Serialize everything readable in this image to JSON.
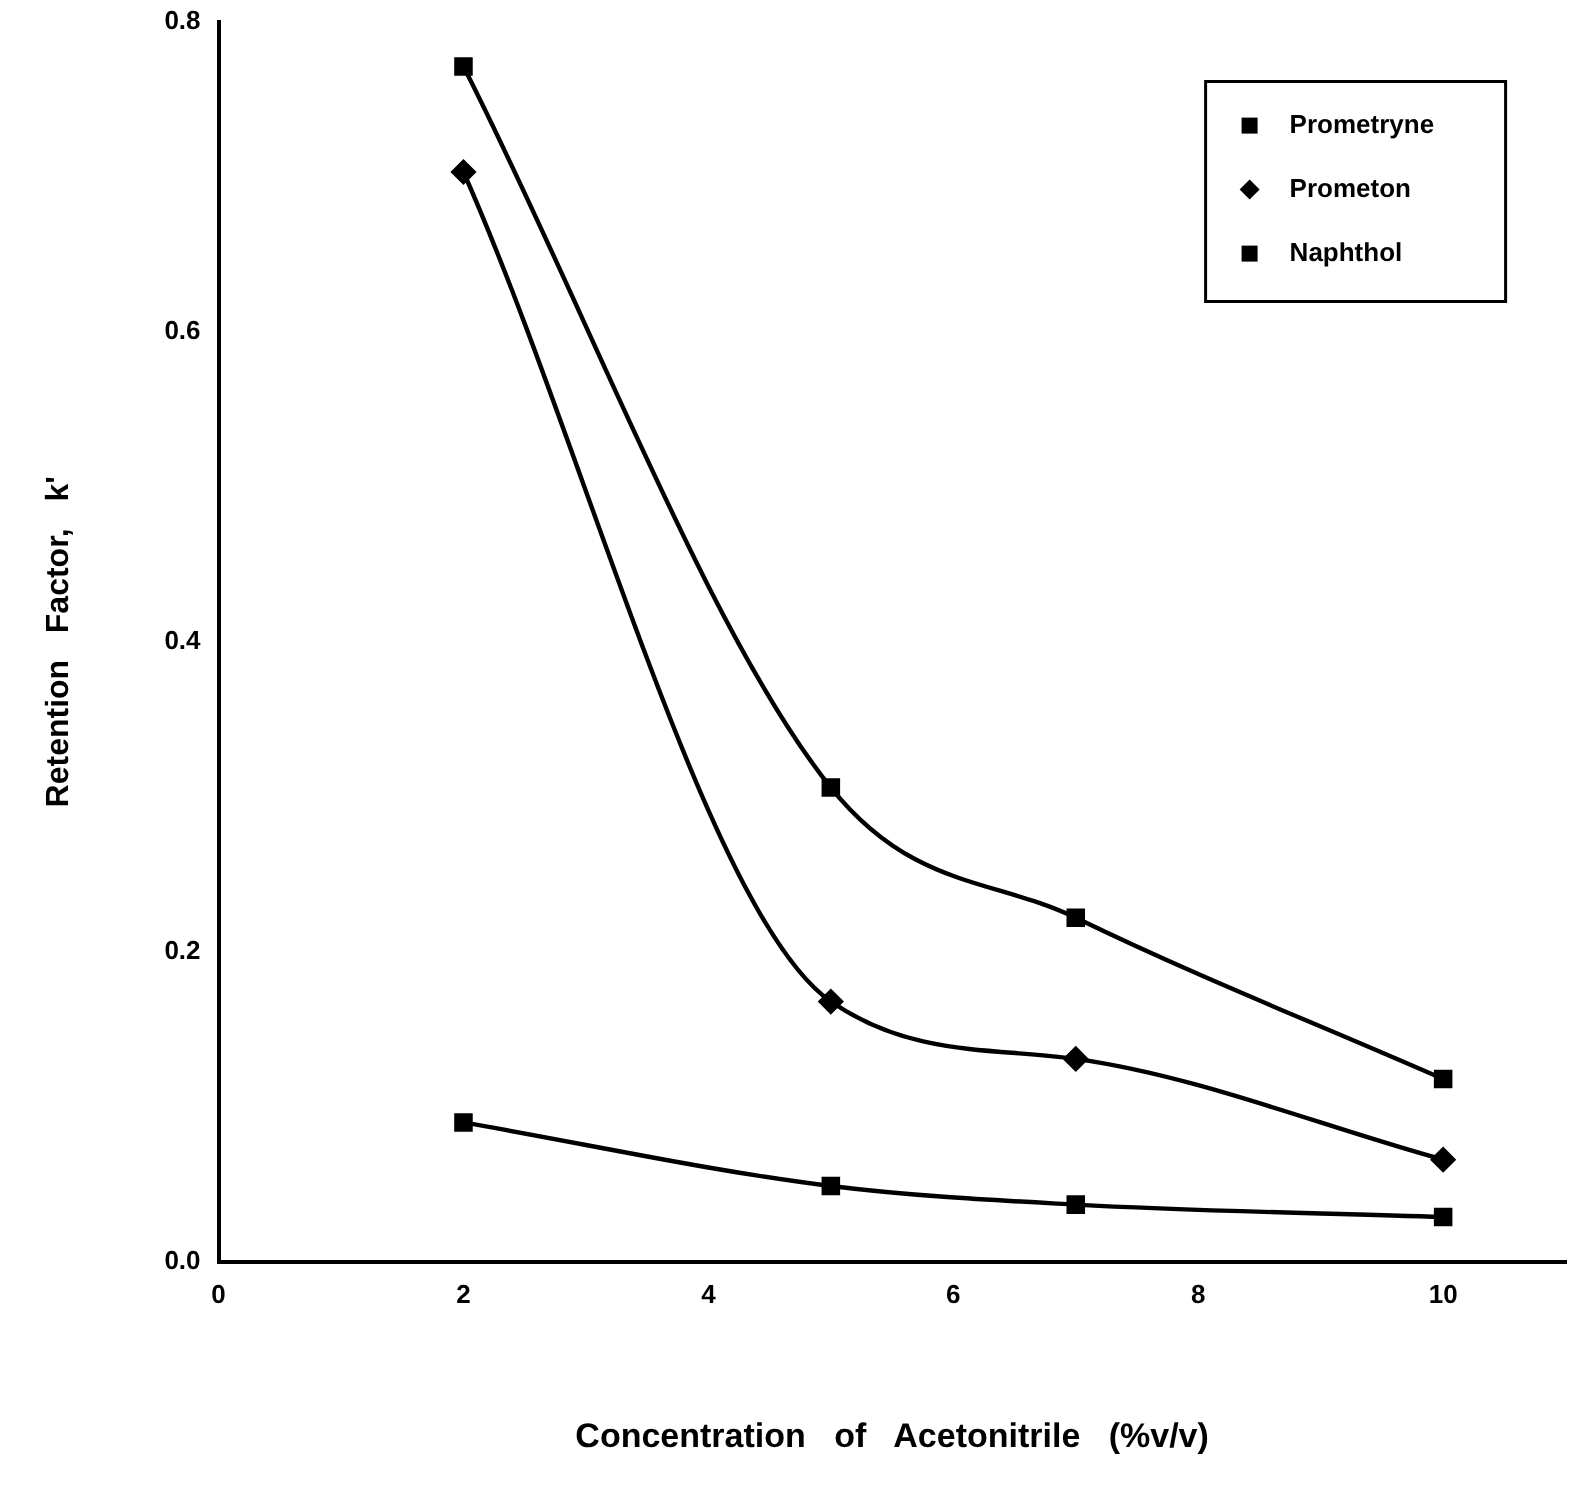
{
  "chart_data": {
    "type": "line",
    "xlabel": "Concentration   of   Acetonitrile   (%v/v)",
    "ylabel": "Retention   Factor,   k'",
    "x": [
      2,
      5,
      7,
      10
    ],
    "series": [
      {
        "name": "Prometryne",
        "color": "#000000",
        "marker": "square",
        "values": [
          0.771,
          0.306,
          0.222,
          0.118
        ]
      },
      {
        "name": "Prometon",
        "color": "#000000",
        "marker": "diamond",
        "values": [
          0.703,
          0.168,
          0.131,
          0.066
        ]
      },
      {
        "name": "Naphthol",
        "color": "#000000",
        "marker": "square",
        "values": [
          0.09,
          0.049,
          0.037,
          0.029
        ]
      }
    ],
    "xlim": [
      0,
      11
    ],
    "xticks": [
      0,
      2,
      4,
      6,
      8,
      10
    ],
    "ylim": [
      0,
      0.8
    ],
    "yticks": [
      {
        "value": 0,
        "label": "0.0"
      },
      {
        "value": 0.2,
        "label": "0.2"
      },
      {
        "value": 0.4,
        "label": "0.4"
      },
      {
        "value": 0.6,
        "label": "0.6"
      },
      {
        "value": 0.8,
        "label": "0.8"
      }
    ],
    "grid": false,
    "legend": "top right",
    "line_style": "solid"
  }
}
